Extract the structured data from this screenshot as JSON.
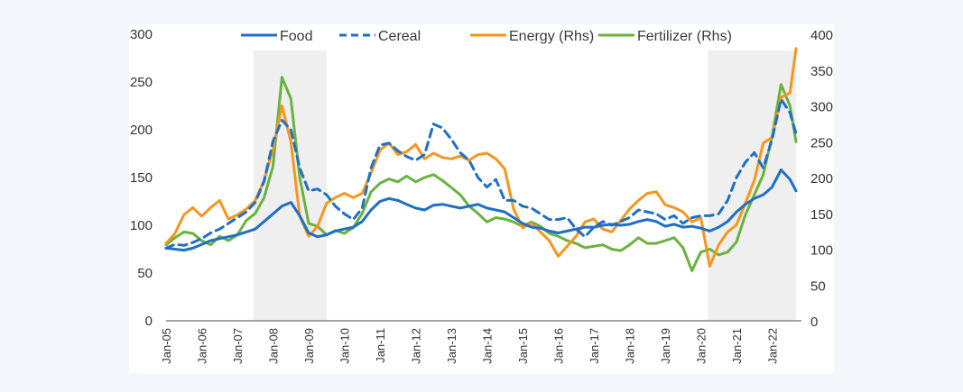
{
  "chart_data": {
    "type": "line",
    "title": "",
    "xlabel": "",
    "ylabel": "",
    "y2label": "",
    "grid": false,
    "legend_position": "top",
    "ylim": [
      0,
      300
    ],
    "y2lim": [
      0,
      400
    ],
    "yticks": [
      "0",
      "50",
      "100",
      "150",
      "200",
      "250",
      "300"
    ],
    "y2ticks": [
      "0",
      "50",
      "100",
      "150",
      "200",
      "250",
      "300",
      "350",
      "400"
    ],
    "xticks": [
      "Jan-05",
      "Jan-06",
      "Jan-07",
      "Jan-08",
      "Jan-09",
      "Jan-10",
      "Jan-11",
      "Jan-12",
      "Jan-13",
      "Jan-14",
      "Jan-15",
      "Jan-16",
      "Jan-17",
      "Jan-18",
      "Jan-19",
      "Jan-20",
      "Jan-21",
      "Jan-22"
    ],
    "x_range": [
      2005.0,
      2022.67
    ],
    "shaded_periods": [
      [
        2007.45,
        2009.5
      ],
      [
        2020.2,
        2022.67
      ]
    ],
    "x": [
      2005.0,
      2005.25,
      2005.5,
      2005.75,
      2006.0,
      2006.25,
      2006.5,
      2006.75,
      2007.0,
      2007.25,
      2007.5,
      2007.75,
      2008.0,
      2008.25,
      2008.5,
      2008.75,
      2009.0,
      2009.25,
      2009.5,
      2009.75,
      2010.0,
      2010.25,
      2010.5,
      2010.75,
      2011.0,
      2011.25,
      2011.5,
      2011.75,
      2012.0,
      2012.25,
      2012.5,
      2012.75,
      2013.0,
      2013.25,
      2013.5,
      2013.75,
      2014.0,
      2014.25,
      2014.5,
      2014.75,
      2015.0,
      2015.25,
      2015.5,
      2015.75,
      2016.0,
      2016.25,
      2016.5,
      2016.75,
      2017.0,
      2017.25,
      2017.5,
      2017.75,
      2018.0,
      2018.25,
      2018.5,
      2018.75,
      2019.0,
      2019.25,
      2019.5,
      2019.75,
      2020.0,
      2020.25,
      2020.5,
      2020.75,
      2021.0,
      2021.25,
      2021.5,
      2021.75,
      2022.0,
      2022.25,
      2022.5,
      2022.67
    ],
    "series": [
      {
        "name": "Food",
        "axis": "left",
        "color": "#1f6fc5",
        "dash": "solid",
        "values": [
          76,
          75,
          74,
          76,
          80,
          84,
          86,
          88,
          90,
          93,
          96,
          104,
          112,
          120,
          124,
          110,
          92,
          88,
          90,
          94,
          96,
          98,
          104,
          116,
          125,
          128,
          126,
          122,
          118,
          116,
          121,
          122,
          120,
          118,
          120,
          122,
          118,
          116,
          114,
          108,
          102,
          98,
          97,
          94,
          92,
          94,
          96,
          98,
          98,
          100,
          101,
          100,
          101,
          104,
          106,
          104,
          99,
          101,
          98,
          99,
          97,
          94,
          98,
          104,
          114,
          122,
          128,
          132,
          140,
          158,
          148,
          136
        ]
      },
      {
        "name": "Cereal",
        "axis": "left",
        "color": "#1f6fc5",
        "dash": "dashed",
        "values": [
          76,
          80,
          79,
          82,
          86,
          92,
          96,
          102,
          108,
          114,
          124,
          146,
          188,
          210,
          200,
          160,
          136,
          138,
          132,
          120,
          112,
          106,
          118,
          160,
          184,
          186,
          178,
          172,
          168,
          174,
          206,
          202,
          190,
          176,
          168,
          150,
          140,
          148,
          126,
          126,
          120,
          118,
          112,
          106,
          106,
          108,
          96,
          88,
          98,
          104,
          100,
          104,
          108,
          116,
          114,
          112,
          106,
          110,
          102,
          108,
          110,
          110,
          112,
          126,
          150,
          166,
          176,
          160,
          190,
          232,
          218,
          196
        ]
      },
      {
        "name": "Energy (Rhs)",
        "axis": "right",
        "color": "#f5961e",
        "dash": "solid",
        "values": [
          108,
          122,
          148,
          158,
          146,
          158,
          168,
          142,
          148,
          156,
          168,
          196,
          240,
          300,
          250,
          146,
          118,
          132,
          164,
          172,
          178,
          172,
          178,
          206,
          238,
          248,
          232,
          236,
          246,
          226,
          234,
          228,
          226,
          230,
          224,
          232,
          234,
          226,
          212,
          156,
          130,
          136,
          124,
          112,
          90,
          104,
          118,
          138,
          142,
          128,
          124,
          140,
          156,
          168,
          178,
          180,
          162,
          158,
          152,
          138,
          144,
          76,
          106,
          124,
          134,
          164,
          196,
          248,
          256,
          312,
          318,
          380
        ]
      },
      {
        "name": "Fertilizer (Rhs)",
        "axis": "right",
        "color": "#6ab23e",
        "dash": "solid",
        "values": [
          106,
          116,
          124,
          122,
          112,
          106,
          118,
          112,
          120,
          140,
          150,
          172,
          216,
          340,
          310,
          200,
          136,
          132,
          120,
          126,
          122,
          130,
          150,
          180,
          192,
          198,
          194,
          202,
          194,
          200,
          204,
          196,
          186,
          176,
          160,
          150,
          138,
          144,
          142,
          138,
          132,
          138,
          132,
          122,
          118,
          112,
          108,
          102,
          104,
          106,
          100,
          98,
          106,
          116,
          108,
          108,
          112,
          116,
          102,
          70,
          96,
          100,
          92,
          96,
          110,
          148,
          176,
          204,
          258,
          330,
          300,
          250
        ]
      }
    ]
  }
}
